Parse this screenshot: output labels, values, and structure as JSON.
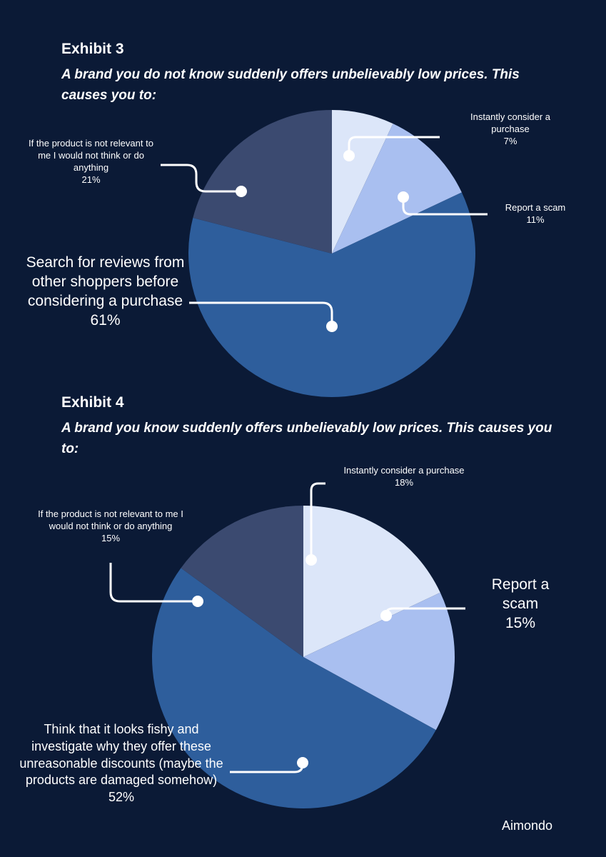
{
  "brand": "Aimondo",
  "chart_data": [
    {
      "type": "pie",
      "title": "Exhibit 3",
      "subtitle": "A brand you do not know suddenly offers unbelievably low prices. This causes you to:",
      "slices": [
        {
          "label": "Instantly consider a purchase",
          "value": 7,
          "value_label": "7%",
          "color": "#dce6f9"
        },
        {
          "label": "Report a scam",
          "value": 11,
          "value_label": "11%",
          "color": "#a9bff0"
        },
        {
          "label": "Search for reviews from other shoppers before considering a purchase",
          "value": 61,
          "value_label": "61%",
          "color": "#2e5e9c"
        },
        {
          "label": "If the product is not relevant to me I would not think or do anything",
          "value": 21,
          "value_label": "21%",
          "color": "#3b4a70"
        }
      ]
    },
    {
      "type": "pie",
      "title": "Exhibit 4",
      "subtitle": "A brand you know suddenly offers unbelievably low prices. This causes you to:",
      "slices": [
        {
          "label": "Instantly consider a purchase",
          "value": 18,
          "value_label": "18%",
          "color": "#dce6f9"
        },
        {
          "label": "Report a scam",
          "value": 15,
          "value_label": "15%",
          "color": "#a9bff0"
        },
        {
          "label": "Think that it looks fishy and investigate why they offer these unreasonable discounts (maybe the products are damaged somehow)",
          "value": 52,
          "value_label": "52%",
          "color": "#2e5e9c"
        },
        {
          "label": "If the product is not relevant to me I would not think or do anything",
          "value": 15,
          "value_label": "15%",
          "color": "#3b4a70"
        }
      ]
    }
  ],
  "labels": {
    "e3_consider": "Instantly consider a purchase",
    "e3_consider_pct": "7%",
    "e3_scam": "Report a scam",
    "e3_scam_pct": "11%",
    "e3_reviews": "Search for reviews from other shoppers before considering a purchase",
    "e3_reviews_pct": "61%",
    "e3_irrelevant": "If the product is not relevant to me I would not think or do anything",
    "e3_irrelevant_pct": "21%",
    "e4_consider": "Instantly consider a purchase",
    "e4_consider_pct": "18%",
    "e4_scam": "Report a scam",
    "e4_scam_pct": "15%",
    "e4_fishy": "Think that it looks fishy and investigate why they offer these unreasonable discounts (maybe the products are damaged somehow)",
    "e4_fishy_pct": "52%",
    "e4_irrelevant": "If the product is not relevant to me I would not think or do anything",
    "e4_irrelevant_pct": "15%"
  }
}
